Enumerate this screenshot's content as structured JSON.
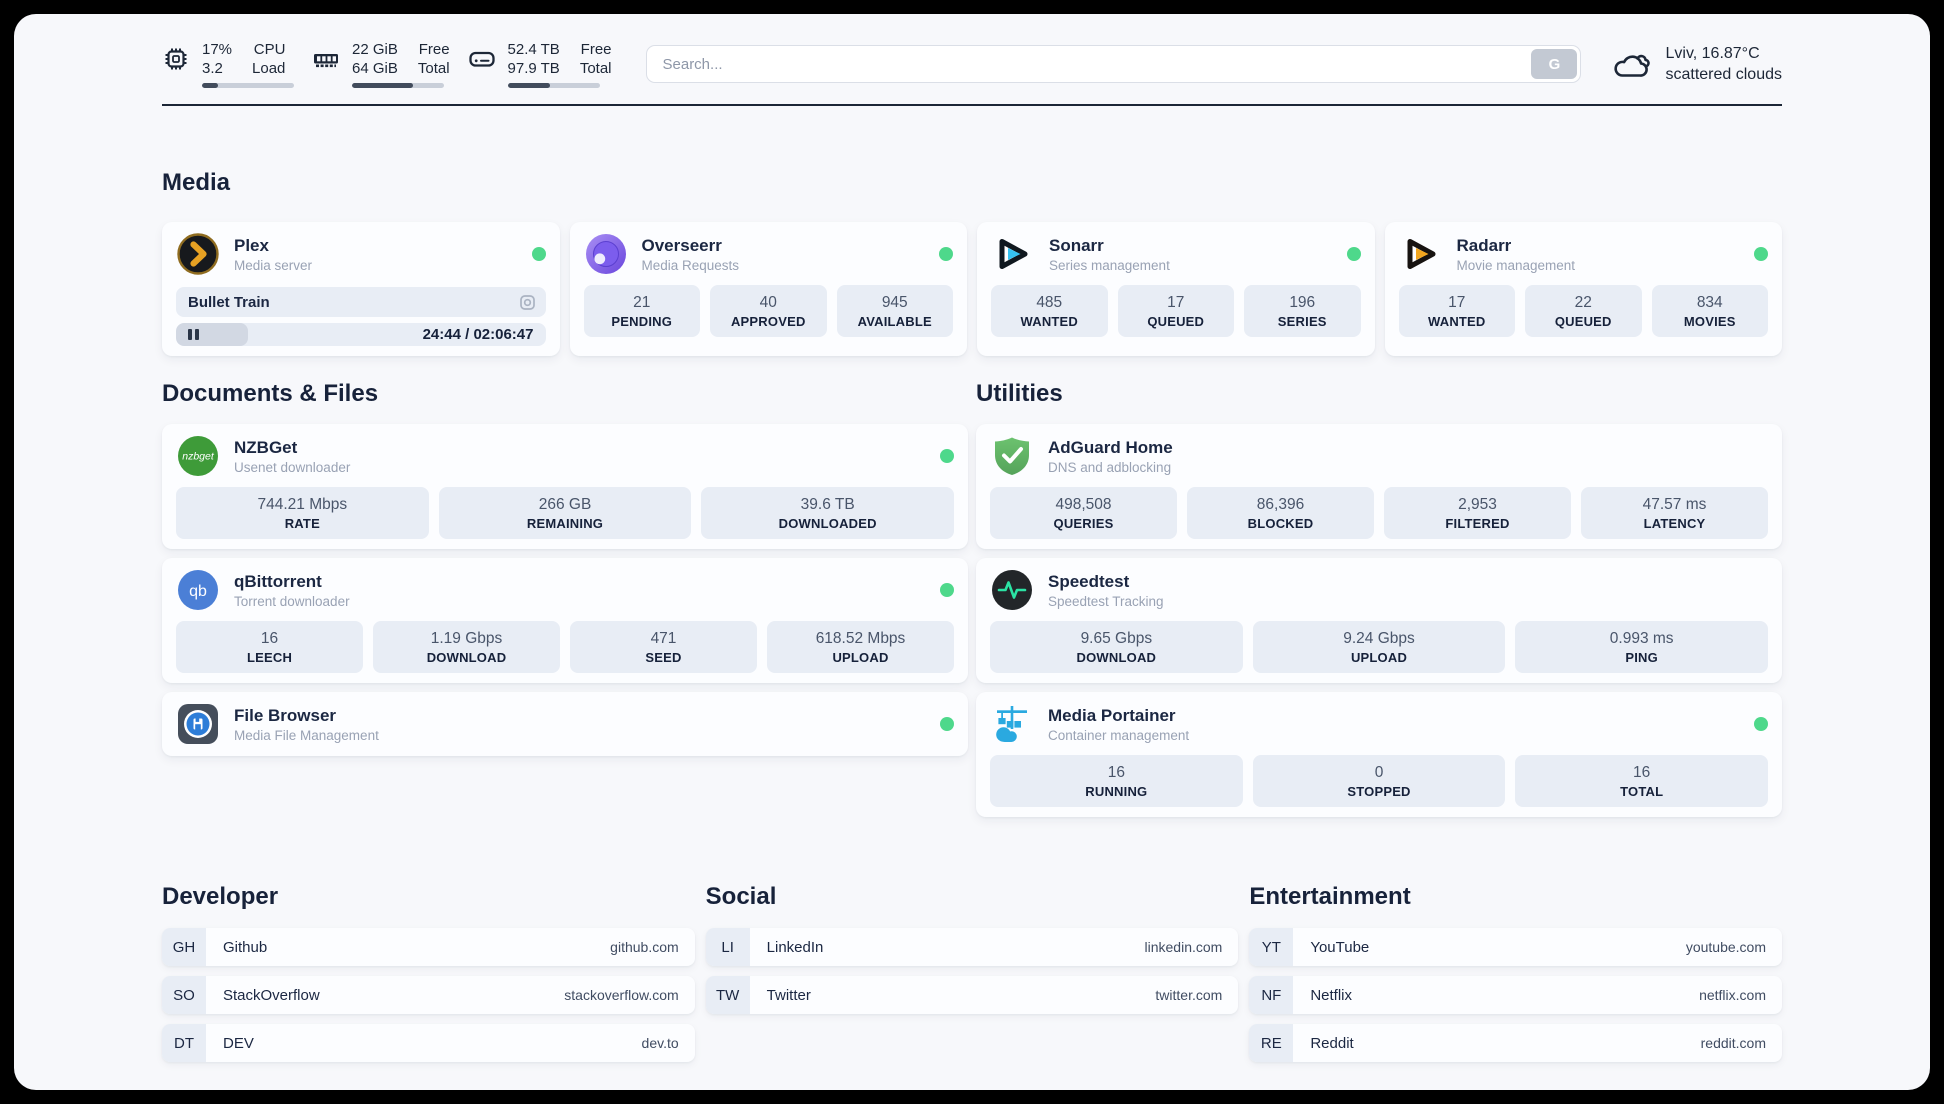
{
  "colors": {
    "status_online": "#4ed88b",
    "page_background": "#f7f8fb",
    "stat_box_background": "#e8edf5",
    "dark_text": "#1b2742"
  },
  "header": {
    "system_stats": [
      {
        "icon": "cpu-icon",
        "values": [
          "17%",
          "3.2"
        ],
        "labels": [
          "CPU",
          "Load"
        ],
        "progress_percent": 17
      },
      {
        "icon": "ram-icon",
        "values": [
          "22 GiB",
          "64 GiB"
        ],
        "labels": [
          "Free",
          "Total"
        ],
        "progress_percent": 66
      },
      {
        "icon": "disk-icon",
        "values": [
          "52.4 TB",
          "97.9 TB"
        ],
        "labels": [
          "Free",
          "Total"
        ],
        "progress_percent": 46
      }
    ],
    "search": {
      "placeholder": "Search...",
      "button_label": "G"
    },
    "weather": {
      "icon": "cloud-icon",
      "headline": "Lviv, 16.87°C",
      "condition": "scattered clouds"
    }
  },
  "sections": {
    "media": {
      "title": "Media",
      "plex": {
        "title": "Plex",
        "subtitle": "Media server",
        "now_playing": "Bullet Train",
        "time_display": "24:44 / 02:06:47",
        "progress_percent": 19.5
      },
      "overseerr": {
        "title": "Overseerr",
        "subtitle": "Media Requests",
        "stats": [
          {
            "value": "21",
            "label": "PENDING"
          },
          {
            "value": "40",
            "label": "APPROVED"
          },
          {
            "value": "945",
            "label": "AVAILABLE"
          }
        ]
      },
      "sonarr": {
        "title": "Sonarr",
        "subtitle": "Series management",
        "stats": [
          {
            "value": "485",
            "label": "WANTED"
          },
          {
            "value": "17",
            "label": "QUEUED"
          },
          {
            "value": "196",
            "label": "SERIES"
          }
        ]
      },
      "radarr": {
        "title": "Radarr",
        "subtitle": "Movie management",
        "stats": [
          {
            "value": "17",
            "label": "WANTED"
          },
          {
            "value": "22",
            "label": "QUEUED"
          },
          {
            "value": "834",
            "label": "MOVIES"
          }
        ]
      }
    },
    "documents": {
      "title": "Documents & Files",
      "nzbget": {
        "title": "NZBGet",
        "subtitle": "Usenet downloader",
        "icon_text": "nzbget",
        "stats": [
          {
            "value": "744.21 Mbps",
            "label": "RATE"
          },
          {
            "value": "266 GB",
            "label": "REMAINING"
          },
          {
            "value": "39.6 TB",
            "label": "DOWNLOADED"
          }
        ]
      },
      "qbittorrent": {
        "title": "qBittorrent",
        "subtitle": "Torrent downloader",
        "icon_text": "qb",
        "stats": [
          {
            "value": "16",
            "label": "LEECH"
          },
          {
            "value": "1.19 Gbps",
            "label": "DOWNLOAD"
          },
          {
            "value": "471",
            "label": "SEED"
          },
          {
            "value": "618.52 Mbps",
            "label": "UPLOAD"
          }
        ]
      },
      "filebrowser": {
        "title": "File Browser",
        "subtitle": "Media File Management"
      }
    },
    "utilities": {
      "title": "Utilities",
      "adguard": {
        "title": "AdGuard Home",
        "subtitle": "DNS and adblocking",
        "stats": [
          {
            "value": "498,508",
            "label": "QUERIES"
          },
          {
            "value": "86,396",
            "label": "BLOCKED"
          },
          {
            "value": "2,953",
            "label": "FILTERED"
          },
          {
            "value": "47.57 ms",
            "label": "LATENCY"
          }
        ]
      },
      "speedtest": {
        "title": "Speedtest",
        "subtitle": "Speedtest Tracking",
        "stats": [
          {
            "value": "9.65 Gbps",
            "label": "DOWNLOAD"
          },
          {
            "value": "9.24 Gbps",
            "label": "UPLOAD"
          },
          {
            "value": "0.993 ms",
            "label": "PING"
          }
        ]
      },
      "portainer": {
        "title": "Media Portainer",
        "subtitle": "Container management",
        "stats": [
          {
            "value": "16",
            "label": "RUNNING"
          },
          {
            "value": "0",
            "label": "STOPPED"
          },
          {
            "value": "16",
            "label": "TOTAL"
          }
        ]
      }
    },
    "developer": {
      "title": "Developer",
      "links": [
        {
          "badge": "GH",
          "name": "Github",
          "url": "github.com"
        },
        {
          "badge": "SO",
          "name": "StackOverflow",
          "url": "stackoverflow.com"
        },
        {
          "badge": "DT",
          "name": "DEV",
          "url": "dev.to"
        }
      ]
    },
    "social": {
      "title": "Social",
      "links": [
        {
          "badge": "LI",
          "name": "LinkedIn",
          "url": "linkedin.com"
        },
        {
          "badge": "TW",
          "name": "Twitter",
          "url": "twitter.com"
        }
      ]
    },
    "entertainment": {
      "title": "Entertainment",
      "links": [
        {
          "badge": "YT",
          "name": "YouTube",
          "url": "youtube.com"
        },
        {
          "badge": "NF",
          "name": "Netflix",
          "url": "netflix.com"
        },
        {
          "badge": "RE",
          "name": "Reddit",
          "url": "reddit.com"
        }
      ]
    }
  }
}
